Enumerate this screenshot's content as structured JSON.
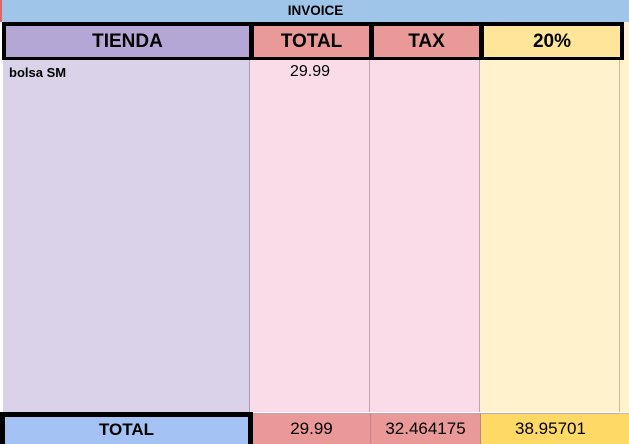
{
  "sheet_title": "INVOICE",
  "table": {
    "headers": {
      "tienda": "TIENDA",
      "total": "TOTAL",
      "tax": "TAX",
      "pct": "20%"
    },
    "rows": [
      {
        "tienda": "bolsa SM",
        "total": "29.99",
        "tax": "",
        "pct": ""
      }
    ],
    "empty_normal_rows": 12,
    "empty_squished_rows": 9,
    "footer": {
      "label": "TOTAL",
      "total": "29.99",
      "tax": "32.464175",
      "pct": "38.95701"
    }
  },
  "colors": {
    "title_band_blue": "#9fc5e8",
    "header_purple": "#b4a7d6",
    "header_salmon": "#ea9999",
    "header_yellow": "#ffe599",
    "body_lavender": "#d9d2e9",
    "body_pink": "#fadce9",
    "body_cream": "#fff2cc",
    "footer_blue": "#a4c2f4",
    "footer_salmon": "#ea9999",
    "footer_gold": "#ffd966",
    "thick_border": "#000000",
    "edge_sliver_red": "#e06666"
  }
}
